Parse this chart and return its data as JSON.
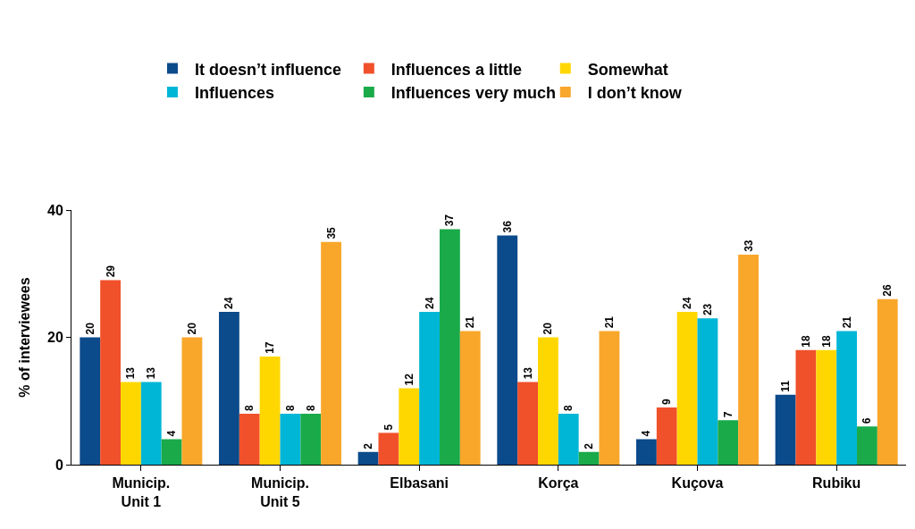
{
  "chart_data": {
    "type": "bar",
    "ylabel": "% of interviewees",
    "categories": [
      "Municip.\nUnit 1",
      "Municip.\nUnit 5",
      "Elbasani",
      "Korça",
      "Kuçova",
      "Rubiku"
    ],
    "series": [
      {
        "name": "It doesn’t influence",
        "color": "#0b4a8b",
        "values": [
          20,
          24,
          2,
          36,
          4,
          11
        ]
      },
      {
        "name": "Influences a little",
        "color": "#f0512b",
        "values": [
          29,
          8,
          5,
          13,
          9,
          18
        ]
      },
      {
        "name": "Somewhat",
        "color": "#ffd700",
        "values": [
          13,
          17,
          12,
          20,
          24,
          18
        ]
      },
      {
        "name": "Influences",
        "color": "#00b6d6",
        "values": [
          13,
          8,
          24,
          8,
          23,
          21
        ]
      },
      {
        "name": "Influences very much",
        "color": "#1aaa4a",
        "values": [
          4,
          8,
          37,
          2,
          7,
          6
        ]
      },
      {
        "name": "I don’t know",
        "color": "#f9a72b",
        "values": [
          20,
          35,
          21,
          21,
          33,
          26
        ]
      }
    ],
    "ylim": [
      0,
      40
    ],
    "yticks": [
      0,
      20,
      40
    ],
    "data_labels": true,
    "legend": "top"
  }
}
